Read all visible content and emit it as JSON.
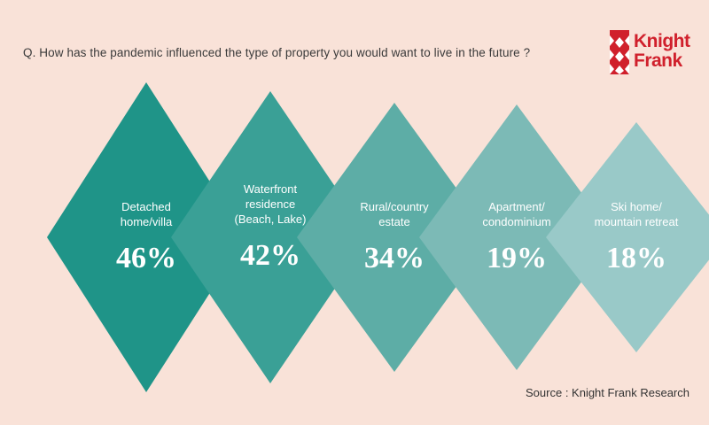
{
  "question": "Q. How has the pandemic influenced the type of property you would want to live in the future ?",
  "logo": {
    "line1": "Knight",
    "line2": "Frank",
    "brand_color": "#d0202c"
  },
  "source": "Source : Knight Frank Research",
  "chart_data": {
    "type": "bar",
    "title": "Q. How has the pandemic influenced the type of property you would want to live in the future ?",
    "categories": [
      [
        "Detached",
        "home/villa"
      ],
      [
        "Waterfront",
        "residence",
        "(Beach, Lake)"
      ],
      [
        "Rural/country",
        "estate"
      ],
      [
        "Apartment/",
        "condominium"
      ],
      [
        "Ski home/",
        "mountain retreat"
      ]
    ],
    "values": [
      46,
      42,
      34,
      19,
      18
    ],
    "value_labels": [
      "46%",
      "42%",
      "34%",
      "19%",
      "18%"
    ],
    "colors": [
      "#1f9488",
      "#3aa096",
      "#5dada6",
      "#7cbab6",
      "#99c9c8"
    ],
    "unit": "%"
  }
}
